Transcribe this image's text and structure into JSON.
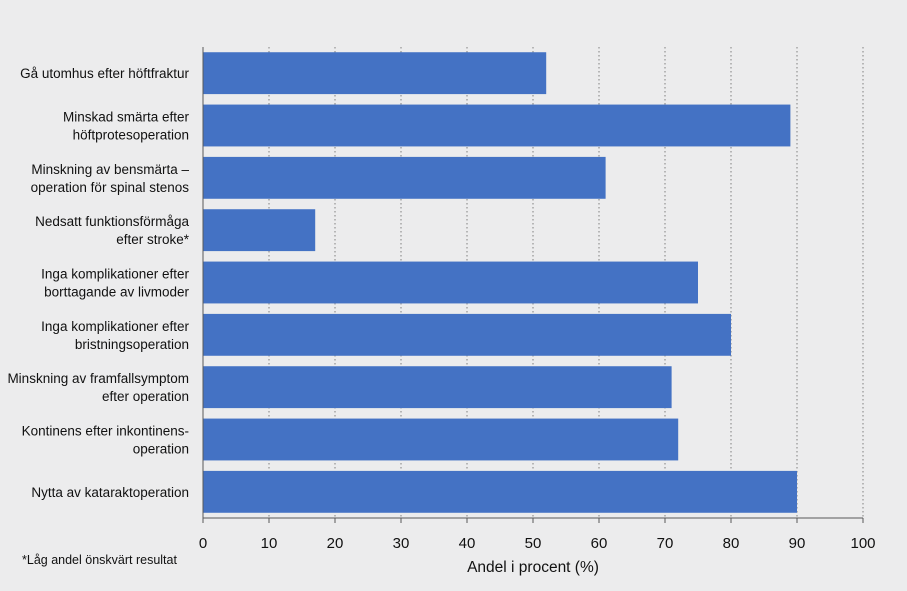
{
  "chart_data": {
    "type": "bar",
    "orientation": "horizontal",
    "categories": [
      [
        "Gå utomhus efter höftfraktur"
      ],
      [
        "Minskad smärta efter",
        "höftprotesoperation"
      ],
      [
        "Minskning av bensmärta –",
        "operation för spinal stenos"
      ],
      [
        "Nedsatt funktionsförmåga",
        "efter stroke*"
      ],
      [
        "Inga komplikationer efter",
        "borttagande av livmoder"
      ],
      [
        "Inga komplikationer efter",
        "bristningsoperation"
      ],
      [
        "Minskning av framfallsymptom",
        "efter operation"
      ],
      [
        "Kontinens efter inkontinens-",
        "operation"
      ],
      [
        "Nytta av kataraktoperation"
      ]
    ],
    "values": [
      52,
      89,
      61,
      17,
      75,
      80,
      71,
      72,
      90
    ],
    "xlabel": "Andel i procent (%)",
    "ylabel": "",
    "xlim": [
      0,
      100
    ],
    "xticks": [
      0,
      10,
      20,
      30,
      40,
      50,
      60,
      70,
      80,
      90,
      100
    ],
    "grid": "vertical dotted",
    "legend": "none",
    "footnote": "*Låg andel önskvärt resultat",
    "colors": {
      "bar": "#4472c4",
      "background": "#ececed",
      "grid": "#7f7f7f",
      "axis": "#595959",
      "text": "#111111"
    }
  }
}
